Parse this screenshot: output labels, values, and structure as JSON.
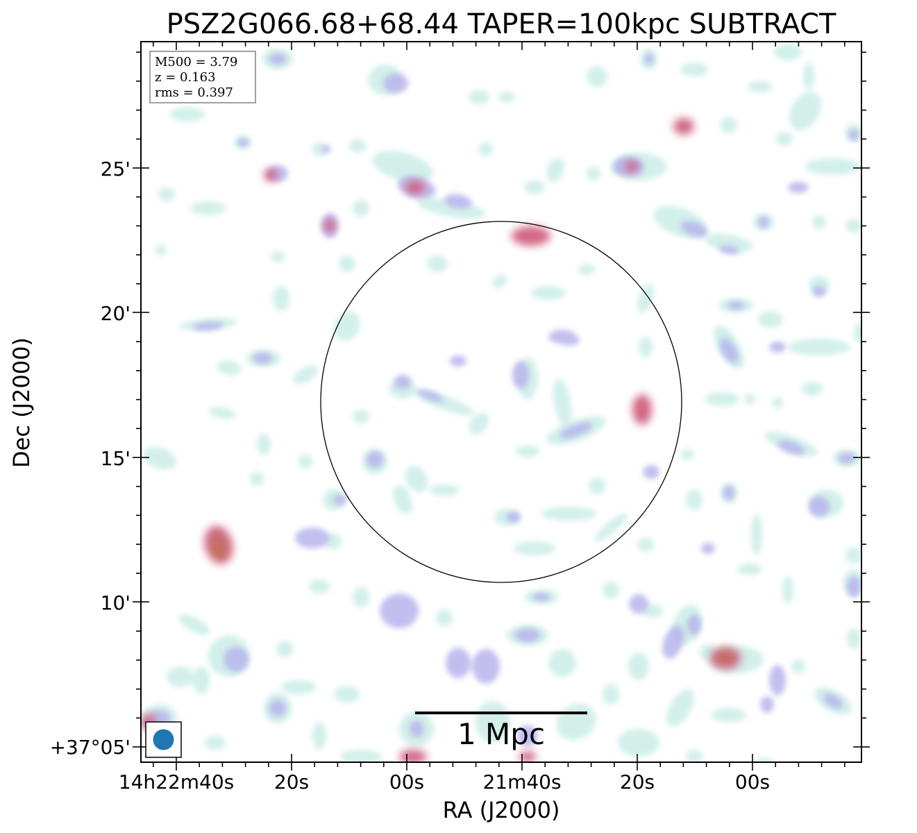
{
  "chart_data": {
    "type": "heatmap",
    "title": "PSZ2G066.68+68.44 TAPER=100kpc SUBTRACT",
    "xlabel": "RA (J2000)",
    "ylabel": "Dec (J2000)",
    "x_tick_labels": [
      "14h22m40s",
      "20s",
      "00s",
      "21m40s",
      "20s",
      "00s"
    ],
    "y_tick_labels": [
      "+37°05'",
      "10'",
      "15'",
      "20'",
      "25'"
    ],
    "info": {
      "m500": "M500 = 3.79",
      "z": "z = 0.163",
      "rms": "rms = 0.397"
    },
    "scale_bar_label": "1 Mpc",
    "grid": false,
    "colors": {
      "low": "#cdeee8",
      "mid": "#b7b4ec",
      "high": "#cf5f7e",
      "peak": "#c06a55",
      "beam": "#1f77b4"
    },
    "sources": [
      {
        "ra": "14h22m36s",
        "dec": "+37°11.9'",
        "level": "peak"
      },
      {
        "ra": "14h21m39s",
        "dec": "+37°22.7'",
        "level": "high"
      },
      {
        "ra": "14h21m12s",
        "dec": "+37°26.4'",
        "level": "high"
      },
      {
        "ra": "14h21m05s",
        "dec": "+37°08.0'",
        "level": "peak"
      },
      {
        "ra": "14h21m20s",
        "dec": "+37°16.6'",
        "level": "high"
      },
      {
        "ra": "14h22m00s",
        "dec": "+37°04.9'",
        "level": "high"
      }
    ]
  }
}
